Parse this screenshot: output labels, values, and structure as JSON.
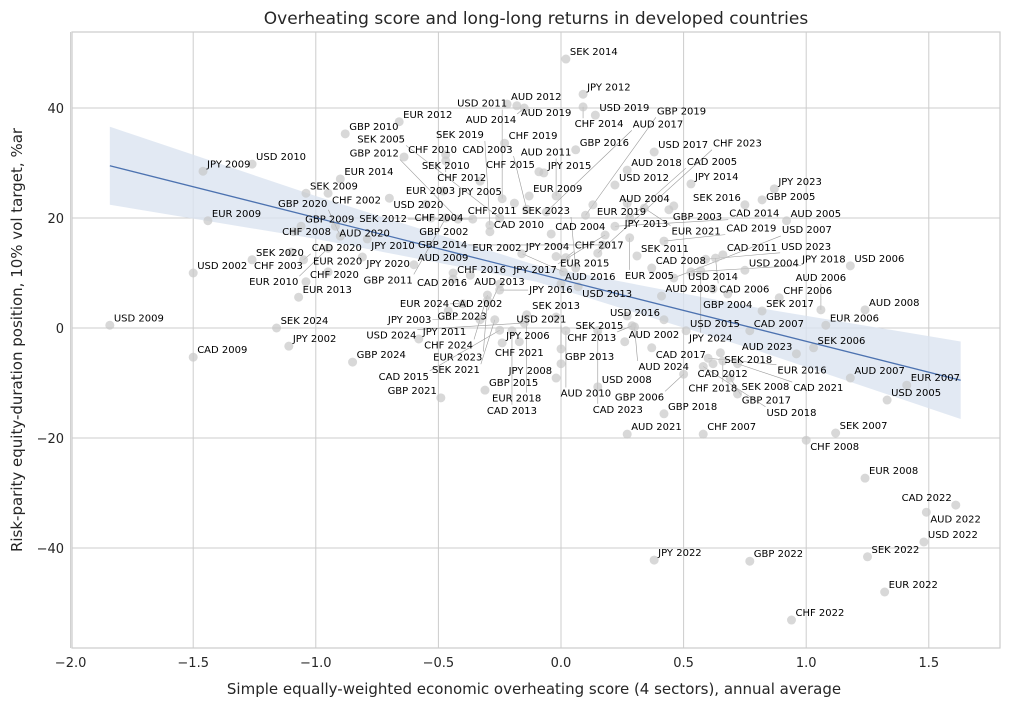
{
  "chart_data": {
    "type": "scatter",
    "title": "Overheating score and long-long returns in developed countries",
    "xlabel": "Simple equally-weighted economic overheating score (4 sectors), annual average",
    "ylabel": "Risk-parity equity-duration position, 10% vol target, %ar",
    "xlim": [
      -2.05,
      1.8
    ],
    "ylim": [
      -57,
      54
    ],
    "xticks": [
      -2.0,
      -1.5,
      -1.0,
      -0.5,
      0.0,
      0.5,
      1.0,
      1.5
    ],
    "xtick_labels": [
      "−2.0",
      "−1.5",
      "−1.0",
      "−0.5",
      "0.0",
      "0.5",
      "1.0",
      "1.5"
    ],
    "yticks": [
      -40,
      -20,
      0,
      20,
      40
    ],
    "ytick_labels": [
      "−40",
      "−20",
      "0",
      "20",
      "40"
    ],
    "grid": true,
    "colors": {
      "points": "#c8c8c8",
      "line": "#4c72b0",
      "band": "#dbe3f0",
      "grid": "#cccccc"
    },
    "regression": {
      "x": [
        -1.84,
        1.63
      ],
      "y": [
        29.5,
        -9.5
      ]
    },
    "confidence_band": {
      "x": [
        -1.84,
        -1.0,
        -0.1,
        0.8,
        1.63
      ],
      "upper": [
        36.6,
        24.0,
        11.4,
        3.7,
        -2.45
      ],
      "lower": [
        22.4,
        16.2,
        8.4,
        -4.1,
        -16.55
      ]
    },
    "points": [
      [
        "SEK 2014",
        0.02,
        48.9
      ],
      [
        "JPY 2012",
        0.09,
        42.5
      ],
      [
        "AUD 2012",
        -0.22,
        40.7
      ],
      [
        "AUD 2019",
        -0.18,
        40.4
      ],
      [
        "AUD 2014",
        -0.15,
        40.0
      ],
      [
        "CHF 2014",
        0.09,
        40.2
      ],
      [
        "USD 2019",
        0.14,
        38.7
      ],
      [
        "EUR 2012",
        -0.66,
        37.5
      ],
      [
        "GBP 2010",
        -0.88,
        35.3
      ],
      [
        "CHF 2019",
        -0.23,
        33.6
      ],
      [
        "GBP 2016",
        0.06,
        32.4
      ],
      [
        "USD 2017",
        0.38,
        32.0
      ],
      [
        "CHF 2010",
        -0.64,
        31.1
      ],
      [
        "SEK 2010",
        -0.47,
        31.5
      ],
      [
        "CHF 2012",
        -0.47,
        30.4
      ],
      [
        "USD 2010",
        -1.26,
        29.8
      ],
      [
        "JPY 2009",
        -1.46,
        28.5
      ],
      [
        "CHF 2015",
        -0.09,
        28.4
      ],
      [
        "JPY 2015",
        -0.07,
        28.2
      ],
      [
        "AUD 2018",
        0.27,
        28.7
      ],
      [
        "EUR 2014",
        -0.9,
        27.1
      ],
      [
        "JPY 2005",
        -0.33,
        26.7
      ],
      [
        "USD 2012",
        0.22,
        26.0
      ],
      [
        "JPY 2014",
        0.53,
        26.2
      ],
      [
        "JPY 2023",
        0.87,
        25.3
      ],
      [
        "SEK 2009",
        -1.04,
        24.5
      ],
      [
        "CHF 2002",
        -0.95,
        24.5
      ],
      [
        "EUR 2003",
        -0.48,
        24.9
      ],
      [
        "EUR 2009",
        -0.13,
        24.0
      ],
      [
        "AUD 2011",
        -0.02,
        24.0
      ],
      [
        "USD 2020",
        -0.7,
        23.6
      ],
      [
        "CHF 2004",
        -0.55,
        22.5
      ],
      [
        "USD 2011",
        -0.24,
        23.5
      ],
      [
        "CHF 2011",
        -0.19,
        22.7
      ],
      [
        "GBP 2005",
        0.82,
        23.3
      ],
      [
        "SEK 2016",
        0.75,
        22.4
      ],
      [
        "AUD 2004",
        0.46,
        22.2
      ],
      [
        "GBP 2003",
        0.44,
        21.5
      ],
      [
        "EUR 2019",
        0.13,
        22.4
      ],
      [
        "JPY 2013",
        0.27,
        22.7
      ],
      [
        "EUR 2021",
        0.34,
        21.8
      ],
      [
        "CAD 2003",
        -0.14,
        21.6
      ],
      [
        "AUD 2017",
        -0.06,
        21.1
      ],
      [
        "GBP 2019",
        0.1,
        20.5
      ],
      [
        "CAD 2005",
        0.28,
        20.0
      ],
      [
        "SEK 2005",
        -0.25,
        20.0
      ],
      [
        "SEK 2019",
        -0.29,
        18.7
      ],
      [
        "GBP 2002",
        -0.53,
        20.0
      ],
      [
        "GBP 2011",
        -0.47,
        20.0
      ],
      [
        "GBP 2012",
        -0.42,
        19.8
      ],
      [
        "SEK 2012",
        -0.36,
        19.8
      ],
      [
        "AUD 2005",
        0.92,
        19.5
      ],
      [
        "EUR 2009",
        -1.44,
        19.5
      ],
      [
        "CAD 2010",
        -0.29,
        17.5
      ],
      [
        "CAD 2004",
        -0.04,
        17.1
      ],
      [
        "JPY 2017",
        0.18,
        16.9
      ],
      [
        "CAD 2014",
        0.22,
        18.5
      ],
      [
        "GBP 2009",
        -1.06,
        18.5
      ],
      [
        "AUD 2020",
        -0.92,
        18.5
      ],
      [
        "CHF 2008",
        -1.09,
        17.5
      ],
      [
        "GBP 2020",
        -0.9,
        16.7
      ],
      [
        "JPY 2010",
        -0.79,
        16.2
      ],
      [
        "EUR 2005",
        0.28,
        16.4
      ],
      [
        "CAD 2019",
        0.42,
        15.8
      ],
      [
        "GBP 2014",
        0.17,
        15.1
      ],
      [
        "EUR 2010",
        -0.95,
        14.5
      ],
      [
        "CHF 2003",
        -1.1,
        13.8
      ],
      [
        "JPY 2004",
        -0.16,
        13.5
      ],
      [
        "CHF 2023",
        0.15,
        13.6
      ],
      [
        "SEK 2011",
        0.31,
        13.1
      ],
      [
        "CAD 2011",
        0.66,
        13.3
      ],
      [
        "USD 2023",
        0.59,
        12.5
      ],
      [
        "CAD 2006",
        0.63,
        12.7
      ],
      [
        "SEK 2020",
        -1.26,
        12.4
      ],
      [
        "CAD 2020",
        -1.05,
        12.4
      ],
      [
        "JPY 2020",
        -0.81,
        12.9
      ],
      [
        "EUR 2015",
        -0.02,
        13.0
      ],
      [
        "CHF 2017",
        0.02,
        12.8
      ],
      [
        "USD 2002",
        -1.5,
        10.0
      ],
      [
        "AUD 2009",
        -0.6,
        11.5
      ],
      [
        "USD 2004",
        0.75,
        10.5
      ],
      [
        "USD 2006",
        1.18,
        11.3
      ],
      [
        "CAD 2008",
        0.37,
        10.9
      ],
      [
        "JPY 2024",
        0.57,
        10.4
      ],
      [
        "JPY 2018",
        0.53,
        10.2
      ],
      [
        "EUR 2020",
        -0.95,
        10.2
      ],
      [
        "SEK 2023",
        0.06,
        10.9
      ],
      [
        "EUR 2002",
        0.01,
        10.2
      ],
      [
        "CHF 2016",
        -0.44,
        10.0
      ],
      [
        "AUD 2013",
        -0.37,
        9.6
      ],
      [
        "CAD 2016",
        -0.44,
        8.9
      ],
      [
        "USD 2007",
        0.46,
        9.1
      ],
      [
        "CHF 2020",
        -1.04,
        8.4
      ],
      [
        "GBP 2023",
        -0.25,
        8.0
      ],
      [
        "AUD 2016",
        0.0,
        8.0
      ],
      [
        "USD 2013",
        0.07,
        7.5
      ],
      [
        "JPY 2016",
        -0.25,
        6.9
      ],
      [
        "USD 2014",
        0.62,
        7.1
      ],
      [
        "GBP 2004",
        0.68,
        6.2
      ],
      [
        "AUD 2003",
        0.41,
        5.8
      ],
      [
        "CHF 2006",
        0.89,
        5.5
      ],
      [
        "EUR 2013",
        -1.07,
        5.6
      ],
      [
        "EUR 2024",
        -0.4,
        4.4
      ],
      [
        "CHF 2024",
        -0.3,
        6.0
      ],
      [
        "EUR 2023",
        -0.3,
        5.0
      ],
      [
        "SEK 2017",
        0.82,
        3.1
      ],
      [
        "AUD 2006",
        1.06,
        3.3
      ],
      [
        "AUD 2008",
        1.24,
        3.3
      ],
      [
        "CAD 2002",
        -0.46,
        3.1
      ],
      [
        "EUR 2018",
        -0.14,
        2.4
      ],
      [
        "SEK 2013",
        -0.02,
        2.0
      ],
      [
        "SEK 2015",
        0.27,
        2.2
      ],
      [
        "JPY 2003",
        -0.33,
        1.5
      ],
      [
        "SEK 2021",
        -0.27,
        1.5
      ],
      [
        "USD 2024",
        -0.15,
        0.9
      ],
      [
        "USD 2016",
        0.42,
        1.5
      ],
      [
        "EUR 2006",
        1.08,
        0.5
      ],
      [
        "USD 2009",
        -1.84,
        0.5
      ],
      [
        "CHF 2013",
        0.29,
        0.4
      ],
      [
        "SEK 2024",
        -1.16,
        0.0
      ],
      [
        "CAD 2015",
        -0.25,
        -0.4
      ],
      [
        "CAD 2013",
        -0.2,
        -0.5
      ],
      [
        "AUD 2010",
        0.02,
        -0.5
      ],
      [
        "CAD 2023",
        0.15,
        -0.5
      ],
      [
        "AUD 2024",
        0.3,
        0.2
      ],
      [
        "USD 2015",
        0.51,
        -0.5
      ],
      [
        "CAD 2007",
        0.77,
        -0.5
      ],
      [
        "JPY 2011",
        -0.58,
        -2.0
      ],
      [
        "AUD 2002",
        0.26,
        -2.5
      ],
      [
        "JPY 2006",
        -0.24,
        -2.7
      ],
      [
        "CHF 2021",
        -0.17,
        -2.5
      ],
      [
        "USD 2021",
        0.0,
        -3.8
      ],
      [
        "SEK 2006",
        1.03,
        -3.6
      ],
      [
        "CAD 2017",
        0.37,
        -3.6
      ],
      [
        "AUD 2023",
        0.96,
        -4.7
      ],
      [
        "CAD 2009",
        -1.5,
        -5.3
      ],
      [
        "JPY 2002",
        -1.11,
        -3.3
      ],
      [
        "GBP 2024",
        -0.85,
        -6.2
      ],
      [
        "GBP 2013",
        0.0,
        -6.5
      ],
      [
        "SEK 2018",
        0.65,
        -4.5
      ],
      [
        "EUR 2016",
        0.6,
        -5.5
      ],
      [
        "CAD 2012",
        0.62,
        -6.5
      ],
      [
        "USD 2018",
        0.58,
        -7.0
      ],
      [
        "CHF 2018",
        0.66,
        -6.0
      ],
      [
        "CAD 2021",
        0.72,
        -6.5
      ],
      [
        "GBP 2006",
        0.5,
        -8.4
      ],
      [
        "GBP 2017",
        0.69,
        -9.1
      ],
      [
        "JPY 2008",
        -0.02,
        -9.1
      ],
      [
        "AUD 2007",
        1.18,
        -9.1
      ],
      [
        "USD 2008",
        0.15,
        -10.7
      ],
      [
        "EUR 2007",
        1.41,
        -10.4
      ],
      [
        "SEK 2008",
        0.72,
        -12.0
      ],
      [
        "GBP 2015",
        -0.31,
        -11.3
      ],
      [
        "GBP 2021",
        -0.49,
        -12.7
      ],
      [
        "USD 2005",
        1.33,
        -13.1
      ],
      [
        "GBP 2018",
        0.42,
        -15.6
      ],
      [
        "SEK 2007",
        1.12,
        -19.1
      ],
      [
        "AUD 2021",
        0.27,
        -19.3
      ],
      [
        "CHF 2007",
        0.58,
        -19.3
      ],
      [
        "CHF 2008",
        1.0,
        -20.4
      ],
      [
        "EUR 2008",
        1.24,
        -27.3
      ],
      [
        "CAD 2022",
        1.61,
        -32.2
      ],
      [
        "AUD 2022",
        1.49,
        -33.5
      ],
      [
        "USD 2022",
        1.48,
        -38.9
      ],
      [
        "SEK 2022",
        1.25,
        -41.6
      ],
      [
        "JPY 2022",
        0.38,
        -42.2
      ],
      [
        "GBP 2022",
        0.77,
        -42.4
      ],
      [
        "EUR 2022",
        1.32,
        -48.0
      ],
      [
        "CHF 2022",
        0.94,
        -53.1
      ]
    ]
  }
}
